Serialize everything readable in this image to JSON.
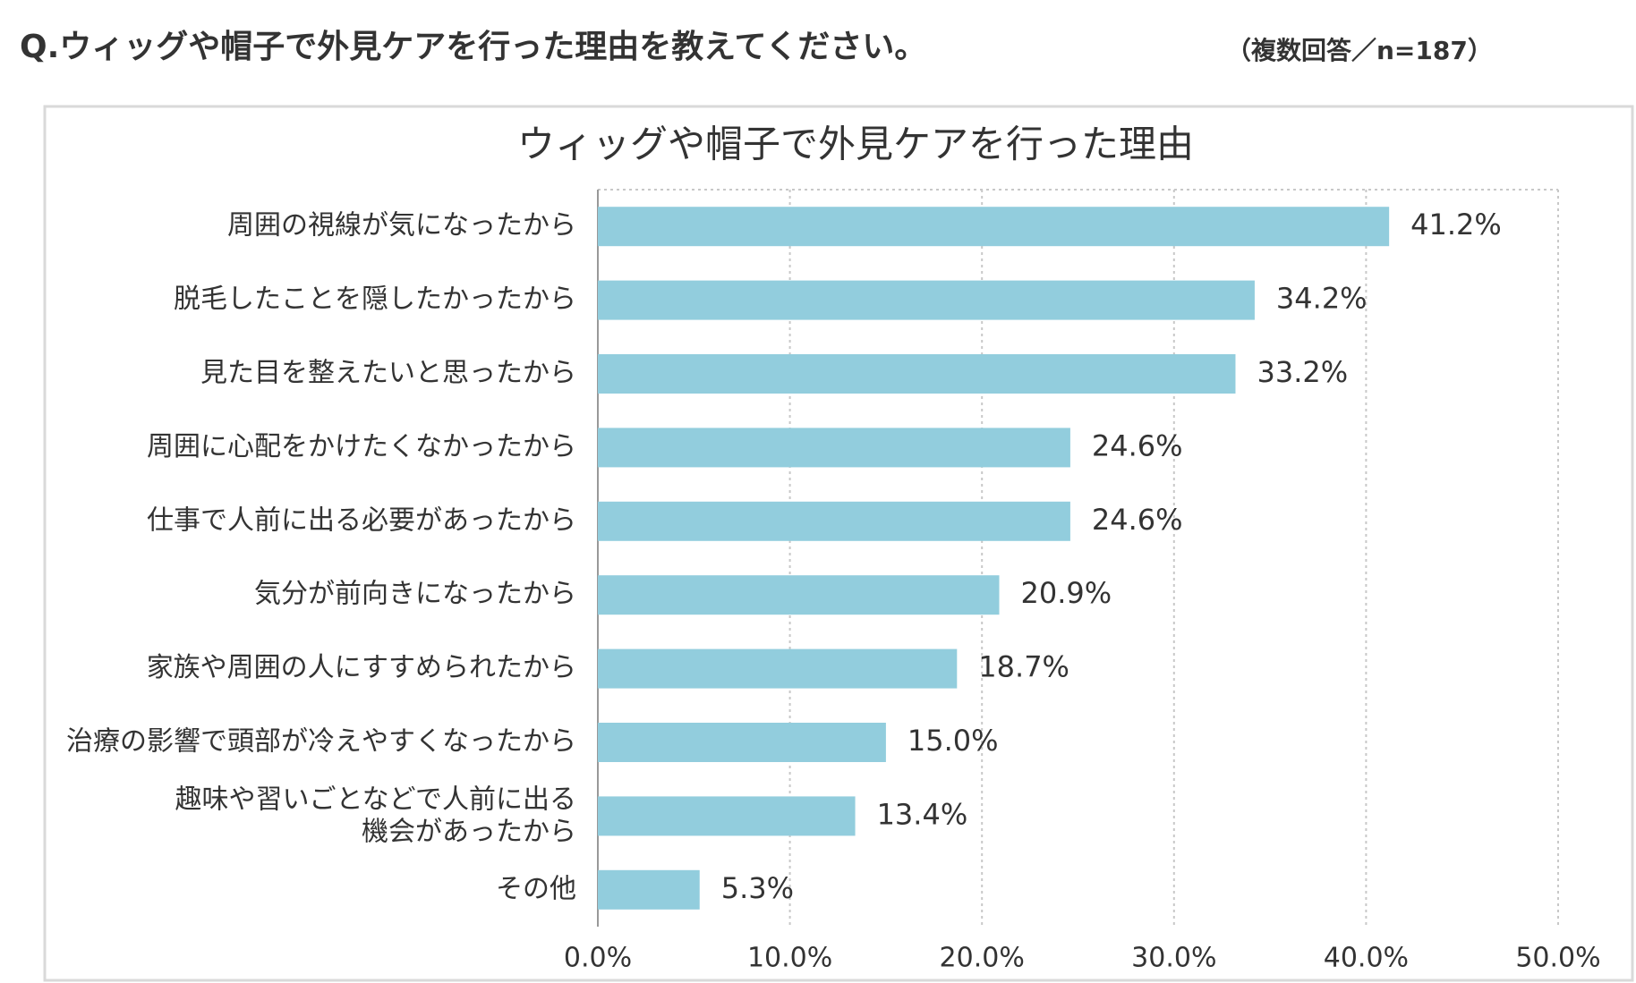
{
  "header": {
    "question": "Q.ウィッグや帽子で外見ケアを行った理由を教えてください。",
    "note": "（複数回答／n=187）"
  },
  "chart_data": {
    "type": "hbar",
    "title": "ウィッグや帽子で外見ケアを行った理由",
    "categories": [
      "周囲の視線が気になったから",
      "脱毛したことを隠したかったから",
      "見た目を整えたいと思ったから",
      "周囲に心配をかけたくなかったから",
      "仕事で人前に出る必要があったから",
      "気分が前向きになったから",
      "家族や周囲の人にすすめられたから",
      "治療の影響で頭部が冷えやすくなったから",
      "趣味や習いごとなどで人前に出る\n機会があったから",
      "その他"
    ],
    "values": [
      41.2,
      34.2,
      33.2,
      24.6,
      24.6,
      20.9,
      18.7,
      15.0,
      13.4,
      5.3
    ],
    "value_labels": [
      "41.2%",
      "34.2%",
      "33.2%",
      "24.6%",
      "24.6%",
      "20.9%",
      "18.7%",
      "15.0%",
      "13.4%",
      "5.3%"
    ],
    "color": "#92cddd",
    "xlim": [
      0,
      50
    ],
    "xticks": [
      {
        "value": 0,
        "label": "0.0%"
      },
      {
        "value": 10,
        "label": "10.0%"
      },
      {
        "value": 20,
        "label": "20.0%"
      },
      {
        "value": 30,
        "label": "30.0%"
      },
      {
        "value": 40,
        "label": "40.0%"
      },
      {
        "value": 50,
        "label": "50.0%"
      }
    ],
    "grid": true
  }
}
